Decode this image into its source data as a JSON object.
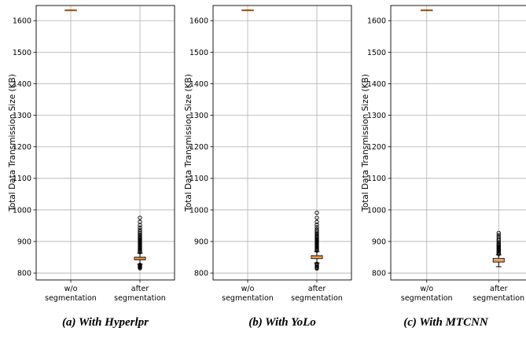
{
  "chart_data": [
    {
      "type": "boxplot",
      "caption": "(a) With Hyperlpr",
      "ylabel": "Total Data Transmission Size (KB)",
      "ylim": [
        778,
        1648
      ],
      "yticks": [
        "800",
        "900",
        "1000",
        "1100",
        "1200",
        "1300",
        "1400",
        "1500",
        "1600"
      ],
      "grid": true,
      "categories": [
        [
          "w/o",
          "segmentation"
        ],
        [
          "after",
          "segmentation"
        ]
      ],
      "boxes": [
        {
          "q1": 1632,
          "median": 1633,
          "q3": 1634,
          "whisker_low": 1632,
          "whisker_high": 1634,
          "outliers": []
        },
        {
          "q1": 842,
          "median": 846,
          "q3": 850,
          "whisker_low": 828,
          "whisker_high": 863,
          "outliers": [
            815,
            818,
            820,
            822,
            824,
            826,
            866,
            869,
            872,
            875,
            878,
            881,
            884,
            887,
            890,
            893,
            896,
            899,
            902,
            905,
            908,
            911,
            914,
            918,
            922,
            926,
            931,
            937,
            944,
            952,
            962,
            975
          ]
        }
      ]
    },
    {
      "type": "boxplot",
      "caption": "(b) With YoLo",
      "ylabel": "Total Data Transmission Size (KB)",
      "ylim": [
        778,
        1648
      ],
      "yticks": [
        "800",
        "900",
        "1000",
        "1100",
        "1200",
        "1300",
        "1400",
        "1500",
        "1600"
      ],
      "grid": true,
      "categories": [
        [
          "w/o",
          "segmentation"
        ],
        [
          "after",
          "segmentation"
        ]
      ],
      "boxes": [
        {
          "q1": 1632,
          "median": 1633,
          "q3": 1634,
          "whisker_low": 1632,
          "whisker_high": 1634,
          "outliers": []
        },
        {
          "q1": 846,
          "median": 851,
          "q3": 855,
          "whisker_low": 832,
          "whisker_high": 868,
          "outliers": [
            814,
            817,
            820,
            823,
            826,
            829,
            871,
            874,
            877,
            880,
            883,
            886,
            889,
            892,
            895,
            898,
            901,
            904,
            907,
            910,
            913,
            916,
            920,
            924,
            928,
            933,
            938,
            945,
            953,
            962,
            975,
            991
          ]
        }
      ]
    },
    {
      "type": "boxplot",
      "caption": "(c) With MTCNN",
      "ylabel": "Total Data Transmission Size (KB)",
      "ylim": [
        778,
        1648
      ],
      "yticks": [
        "800",
        "900",
        "1000",
        "1100",
        "1200",
        "1300",
        "1400",
        "1500",
        "1600"
      ],
      "grid": true,
      "categories": [
        [
          "w/o",
          "segmentation"
        ],
        [
          "after",
          "segmentation"
        ]
      ],
      "boxes": [
        {
          "q1": 835,
          "median": 840,
          "q3": 846,
          "whisker_low": 820,
          "whisker_high": 858,
          "outliers": [
            860,
            863,
            866,
            869,
            872,
            875,
            878,
            881,
            884,
            887,
            890,
            894,
            898,
            903,
            908,
            914,
            920,
            927
          ]
        },
        {
          "q1": 1632,
          "median": 1633,
          "q3": 1634,
          "whisker_low": 1632,
          "whisker_high": 1634,
          "outliers": []
        }
      ],
      "box_positions": [
        1,
        0
      ]
    }
  ]
}
